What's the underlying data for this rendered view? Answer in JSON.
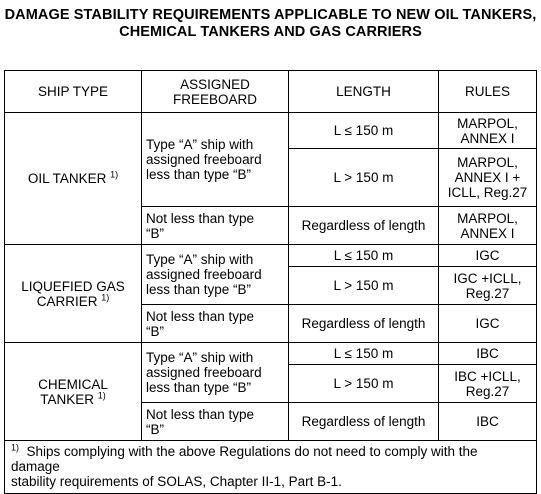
{
  "title": {
    "line1": "DAMAGE STABILITY REQUIREMENTS APPLICABLE TO NEW OIL TANKERS,",
    "line2": "CHEMICAL TANKERS AND GAS CARRIERS"
  },
  "headers": {
    "ship_type": "SHIP TYPE",
    "freeboard_line1": "ASSIGNED",
    "freeboard_line2": "FREEBOARD",
    "length": "LENGTH",
    "rules": "RULES"
  },
  "oil": {
    "ship_line1": "OIL TANKER",
    "ship_sup": "1)",
    "fb_a_line1": "Type “A” ship with",
    "fb_a_line2": "assigned freeboard",
    "fb_a_line3": "less than type “B”",
    "len1": "L ≤ 150 m",
    "rule1_line1": "MARPOL,",
    "rule1_line2": "ANNEX I",
    "len2": "L > 150 m",
    "rule2_line1": "MARPOL,",
    "rule2_line2": "ANNEX I +",
    "rule2_line3": "ICLL, Reg.27",
    "fb_b_line1": "Not less than type",
    "fb_b_line2": "“B”",
    "len3": "Regardless of length",
    "rule3_line1": "MARPOL,",
    "rule3_line2": "ANNEX I"
  },
  "gas": {
    "ship_line1": "LIQUEFIED GAS",
    "ship_line2": "CARRIER",
    "ship_sup": "1)",
    "fb_a_line1": "Type “A” ship with",
    "fb_a_line2": "assigned freeboard",
    "fb_a_line3": "less than type “B”",
    "len1": "L ≤ 150 m",
    "rule1": "IGC",
    "len2": "L > 150 m",
    "rule2_line1": "IGC +ICLL,",
    "rule2_line2": "Reg.27",
    "fb_b_line1": "Not less than type",
    "fb_b_line2": "“B”",
    "len3": "Regardless of length",
    "rule3": "IGC"
  },
  "chem": {
    "ship_line1": "CHEMICAL",
    "ship_line2": "TANKER",
    "ship_sup": "1)",
    "fb_a_line1": "Type “A” ship with",
    "fb_a_line2": "assigned freeboard",
    "fb_a_line3": "less than type “B”",
    "len1": "L ≤ 150 m",
    "rule1": "IBC",
    "len2": "L > 150 m",
    "rule2_line1": "IBC +ICLL,",
    "rule2_line2": "Reg.27",
    "fb_b_line1": "Not less than type",
    "fb_b_line2": "“B”",
    "len3": "Regardless of length",
    "rule3": "IBC"
  },
  "footnote": {
    "marker": "1)",
    "line1": "Ships complying with the above Regulations do not need to comply with the damage",
    "line2": "stability requirements of SOLAS, Chapter II-1, Part B-1."
  }
}
